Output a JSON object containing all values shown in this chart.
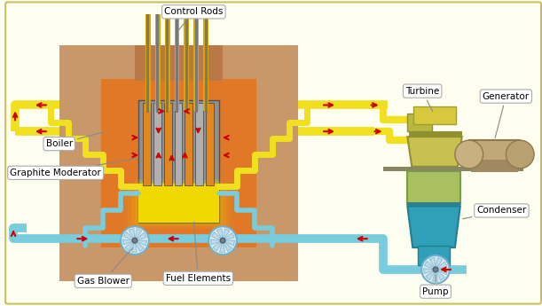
{
  "bg_color": "#fefef0",
  "border_color": "#c8c060",
  "labels": {
    "control_rods": "Control Rods",
    "boiler": "Boiler",
    "graphite_moderator": "Graphite Moderator",
    "fuel_elements": "Fuel Elements",
    "gas_blower": "Gas Blower",
    "turbine": "Turbine",
    "generator": "Generator",
    "condenser": "Condenser",
    "pump": "Pump"
  },
  "colors": {
    "outer_wall": "#c8986a",
    "inner_wall_orange": "#e07828",
    "core_gray": "#a8a8a8",
    "fuel_yellow": "#f0d800",
    "fuel_orange": "#e08820",
    "control_yellow": "#d8a800",
    "control_gray": "#787878",
    "hot_yellow": "#f0e020",
    "cold_blue": "#78ccdc",
    "arrow_red": "#cc0000",
    "turbine_yellow": "#c8c848",
    "turbine_dark": "#a8a830",
    "generator_tan": "#c0a870",
    "generator_dark": "#907850",
    "condenser_green": "#98bc60",
    "condenser_teal": "#30a0b0",
    "condenser_dark": "#208090",
    "label_bg": "#ffffff",
    "label_border": "#aaaaaa"
  }
}
